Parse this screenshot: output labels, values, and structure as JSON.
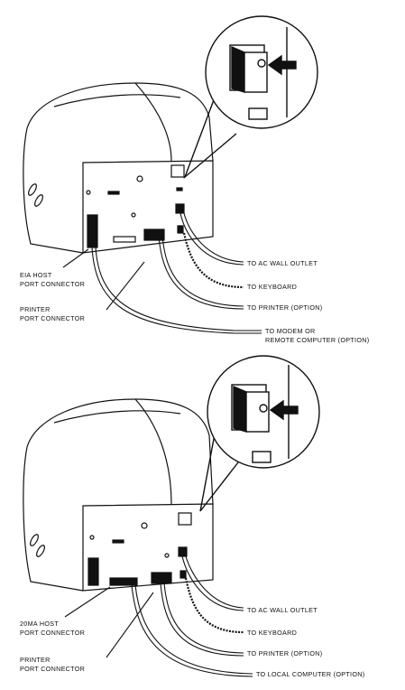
{
  "diagram_top": {
    "left_labels": [
      {
        "id": "eia-host",
        "line1": "EIA HOST",
        "line2": "PORT CONNECTOR"
      },
      {
        "id": "printer-port",
        "line1": "PRINTER",
        "line2": "PORT CONNECTOR"
      }
    ],
    "right_labels": [
      {
        "id": "ac-outlet",
        "line1": "TO AC WALL OUTLET",
        "line2": ""
      },
      {
        "id": "keyboard",
        "line1": "TO KEYBOARD",
        "line2": ""
      },
      {
        "id": "printer",
        "line1": "TO PRINTER (OPTION)",
        "line2": ""
      },
      {
        "id": "modem",
        "line1": "TO MODEM OR",
        "line2": "REMOTE COMPUTER (OPTION)"
      }
    ]
  },
  "diagram_bottom": {
    "left_labels": [
      {
        "id": "20ma-host",
        "line1": "20mA HOST",
        "line2": "PORT CONNECTOR"
      },
      {
        "id": "printer-port",
        "line1": "PRINTER",
        "line2": "PORT CONNECTOR"
      }
    ],
    "right_labels": [
      {
        "id": "ac-outlet",
        "line1": "TO AC WALL OUTLET",
        "line2": ""
      },
      {
        "id": "keyboard",
        "line1": "TO KEYBOARD",
        "line2": ""
      },
      {
        "id": "printer",
        "line1": "TO PRINTER (OPTION)",
        "line2": ""
      },
      {
        "id": "local-computer",
        "line1": "TO LOCAL COMPUTER (OPTION)",
        "line2": ""
      }
    ]
  }
}
